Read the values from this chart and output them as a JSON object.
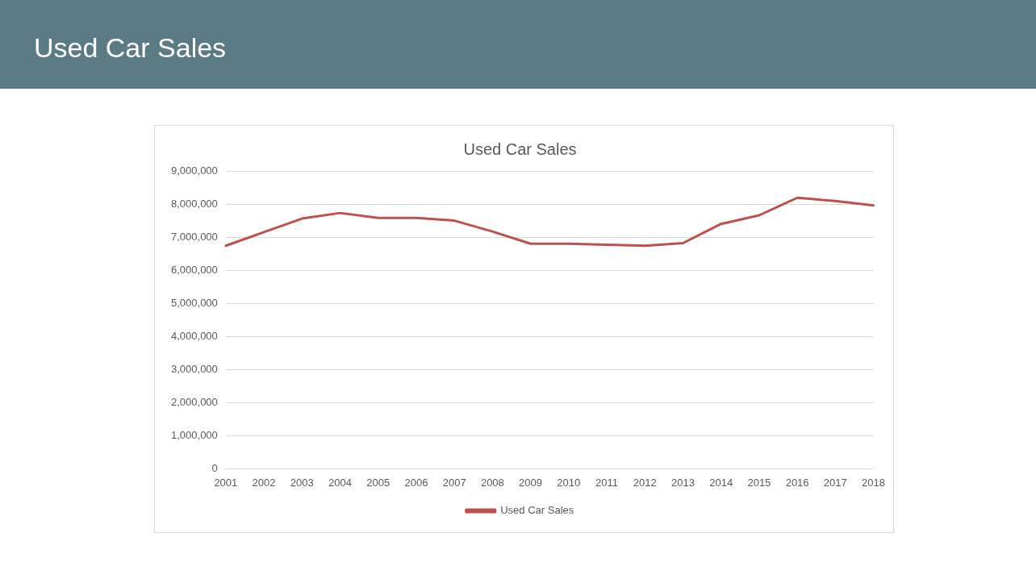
{
  "chart_data": {
    "type": "line",
    "title": "Used Car Sales",
    "annotations": [
      "Used Car Sales"
    ],
    "categories": [
      "2001",
      "2002",
      "2003",
      "2004",
      "2005",
      "2006",
      "2007",
      "2008",
      "2009",
      "2010",
      "2011",
      "2012",
      "2013",
      "2014",
      "2015",
      "2016",
      "2017",
      "2018"
    ],
    "series": [
      {
        "name": "Used Car Sales",
        "color": "#c0504d",
        "values": [
          6740000,
          7150000,
          7560000,
          7730000,
          7580000,
          7580000,
          7500000,
          7170000,
          6800000,
          6800000,
          6770000,
          6740000,
          6820000,
          7400000,
          7660000,
          8190000,
          8090000,
          7960000
        ]
      }
    ],
    "ylim": [
      0,
      9000000
    ],
    "yticks": [
      {
        "value": 0,
        "label": "0"
      },
      {
        "value": 1000000,
        "label": "1,000,000"
      },
      {
        "value": 2000000,
        "label": "2,000,000"
      },
      {
        "value": 3000000,
        "label": "3,000,000"
      },
      {
        "value": 4000000,
        "label": "4,000,000"
      },
      {
        "value": 5000000,
        "label": "5,000,000"
      },
      {
        "value": 6000000,
        "label": "6,000,000"
      },
      {
        "value": 7000000,
        "label": "7,000,000"
      },
      {
        "value": 8000000,
        "label": "8,000,000"
      },
      {
        "value": 9000000,
        "label": "9,000,000"
      }
    ],
    "grid": "y",
    "legend": "bottom",
    "marker": "none",
    "line_style": "solid"
  }
}
